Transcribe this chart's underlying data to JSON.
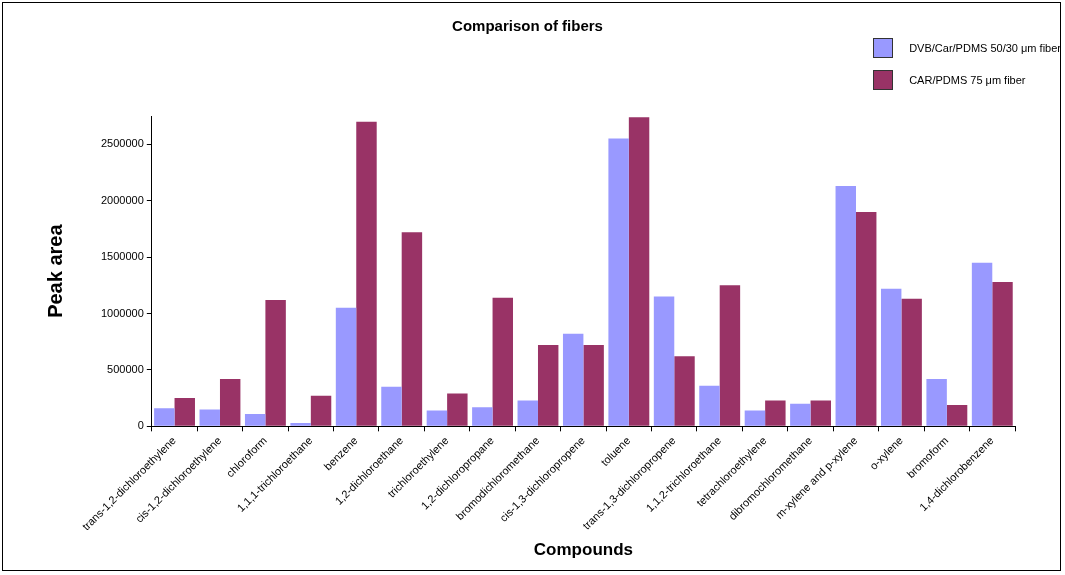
{
  "chart_data": {
    "type": "bar",
    "title": "Comparison of fibers",
    "xlabel": "Compounds",
    "ylabel": "Peak area",
    "categories": [
      "trans-1,2-dichloroethylene",
      "cis-1,2-dichloroethylene",
      "chloroform",
      "1,1,1-trichloroethane",
      "benzene",
      "1,2-dichloroethane",
      "trichloroethylene",
      "1,2-dichloropropane",
      "bromodichloromethane",
      "cis-1,3-dichloropropene",
      "toluene",
      "trans-1,3-dichloropropene",
      "1,1,2-trichloroethane",
      "tetrachloroethylene",
      "dibromochloromethane",
      "m-xylene and p-xylene",
      "o-xylene",
      "bromoform",
      "1,4-dichlorobenzene"
    ],
    "series": [
      {
        "name": "DVB/Car/PDMS 50/30 μm fiber",
        "color": "#9999ff",
        "values": [
          160000,
          150000,
          110000,
          30000,
          1050000,
          350000,
          140000,
          170000,
          230000,
          820000,
          2550000,
          1150000,
          360000,
          140000,
          200000,
          2130000,
          1220000,
          420000,
          1450000
        ]
      },
      {
        "name": "CAR/PDMS 75 μm fiber",
        "color": "#993366",
        "values": [
          250000,
          420000,
          1120000,
          270000,
          2700000,
          1720000,
          290000,
          1140000,
          720000,
          720000,
          2740000,
          620000,
          1250000,
          230000,
          230000,
          1900000,
          1130000,
          190000,
          1280000
        ]
      }
    ],
    "ylim": [
      0,
      2750000
    ],
    "yticks": [
      0,
      500000,
      1000000,
      1500000,
      2000000,
      2500000
    ],
    "grid": false,
    "legend": "top right"
  }
}
